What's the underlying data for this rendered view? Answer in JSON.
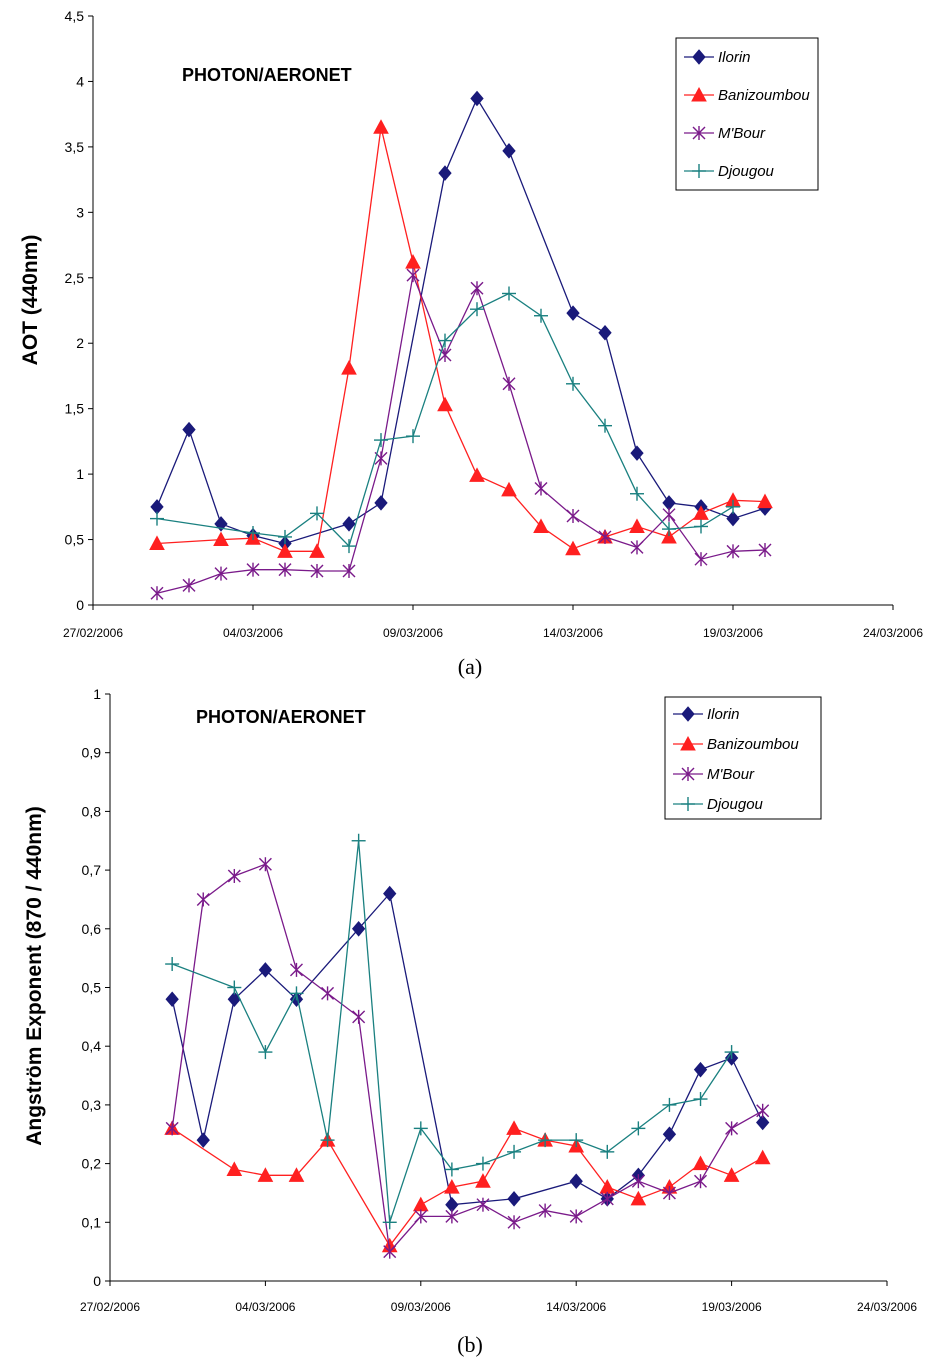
{
  "chart_data": [
    {
      "type": "line",
      "title": "PHOTON/AERONET",
      "caption": "(a)",
      "ylabel": "AOT  (440nm)",
      "xlabel": "",
      "ylim": [
        0,
        4.5
      ],
      "yticks": [
        "0",
        "0,5",
        "1",
        "1,5",
        "2",
        "2,5",
        "3",
        "3,5",
        "4",
        "4,5"
      ],
      "xlim": [
        "27/02/2006",
        "24/03/2006"
      ],
      "xticks": [
        "27/02/2006",
        "04/03/2006",
        "09/03/2006",
        "14/03/2006",
        "19/03/2006",
        "24/03/2006"
      ],
      "legend_position": "top-right",
      "grid": false,
      "series": [
        {
          "name": "Ilorin",
          "color": "#1a1a7a",
          "marker": "diamond",
          "x": [
            "2006-03-01",
            "2006-03-02",
            "2006-03-03",
            "2006-03-04",
            "2006-03-05",
            "2006-03-07",
            "2006-03-08",
            "2006-03-10",
            "2006-03-11",
            "2006-03-12",
            "2006-03-14",
            "2006-03-15",
            "2006-03-16",
            "2006-03-17",
            "2006-03-18",
            "2006-03-19",
            "2006-03-20"
          ],
          "y": [
            0.75,
            1.34,
            0.62,
            0.53,
            0.47,
            0.62,
            0.78,
            3.3,
            3.87,
            3.47,
            2.23,
            2.08,
            1.16,
            0.78,
            0.75,
            0.66,
            0.74
          ]
        },
        {
          "name": "Banizoumbou",
          "color": "#ff2020",
          "marker": "triangle",
          "x": [
            "2006-03-01",
            "2006-03-03",
            "2006-03-04",
            "2006-03-05",
            "2006-03-06",
            "2006-03-07",
            "2006-03-08",
            "2006-03-09",
            "2006-03-10",
            "2006-03-11",
            "2006-03-12",
            "2006-03-13",
            "2006-03-14",
            "2006-03-15",
            "2006-03-16",
            "2006-03-17",
            "2006-03-18",
            "2006-03-19",
            "2006-03-20"
          ],
          "y": [
            0.47,
            0.5,
            0.51,
            0.41,
            0.41,
            1.81,
            3.65,
            2.62,
            1.53,
            0.99,
            0.88,
            0.6,
            0.43,
            0.52,
            0.6,
            0.52,
            0.7,
            0.8,
            0.79
          ]
        },
        {
          "name": "M'Bour",
          "color": "#7a1a8a",
          "marker": "star",
          "x": [
            "2006-03-01",
            "2006-03-02",
            "2006-03-03",
            "2006-03-04",
            "2006-03-05",
            "2006-03-06",
            "2006-03-07",
            "2006-03-08",
            "2006-03-09",
            "2006-03-10",
            "2006-03-11",
            "2006-03-12",
            "2006-03-13",
            "2006-03-14",
            "2006-03-15",
            "2006-03-16",
            "2006-03-17",
            "2006-03-18",
            "2006-03-19",
            "2006-03-20"
          ],
          "y": [
            0.09,
            0.15,
            0.24,
            0.27,
            0.27,
            0.26,
            0.26,
            1.12,
            2.52,
            1.91,
            2.42,
            1.69,
            0.89,
            0.68,
            0.52,
            0.44,
            0.69,
            0.35,
            0.41,
            0.42
          ]
        },
        {
          "name": "Djougou",
          "color": "#1a8080",
          "marker": "plus",
          "x": [
            "2006-03-01",
            "2006-03-04",
            "2006-03-05",
            "2006-03-06",
            "2006-03-07",
            "2006-03-08",
            "2006-03-09",
            "2006-03-10",
            "2006-03-11",
            "2006-03-12",
            "2006-03-13",
            "2006-03-14",
            "2006-03-15",
            "2006-03-16",
            "2006-03-17",
            "2006-03-18",
            "2006-03-19"
          ],
          "y": [
            0.66,
            0.55,
            0.52,
            0.7,
            0.45,
            1.26,
            1.29,
            2.02,
            2.26,
            2.38,
            2.21,
            1.69,
            1.37,
            0.85,
            0.58,
            0.6,
            0.75
          ]
        }
      ]
    },
    {
      "type": "line",
      "title": "PHOTON/AERONET",
      "caption": "(b)",
      "ylabel": "Angström Exponent (870 / 440nm)",
      "xlabel": "",
      "ylim": [
        0,
        1
      ],
      "yticks": [
        "0",
        "0,1",
        "0,2",
        "0,3",
        "0,4",
        "0,5",
        "0,6",
        "0,7",
        "0,8",
        "0,9",
        "1"
      ],
      "xlim": [
        "27/02/2006",
        "24/03/2006"
      ],
      "xticks": [
        "27/02/2006",
        "04/03/2006",
        "09/03/2006",
        "14/03/2006",
        "19/03/2006",
        "24/03/2006"
      ],
      "legend_position": "top-right",
      "grid": false,
      "series": [
        {
          "name": "Ilorin",
          "color": "#1a1a7a",
          "marker": "diamond",
          "x": [
            "2006-03-01",
            "2006-03-02",
            "2006-03-03",
            "2006-03-04",
            "2006-03-05",
            "2006-03-07",
            "2006-03-08",
            "2006-03-10",
            "2006-03-12",
            "2006-03-14",
            "2006-03-15",
            "2006-03-16",
            "2006-03-17",
            "2006-03-18",
            "2006-03-19",
            "2006-03-20"
          ],
          "y": [
            0.48,
            0.24,
            0.48,
            0.53,
            0.48,
            0.6,
            0.66,
            0.13,
            0.14,
            0.17,
            0.14,
            0.18,
            0.25,
            0.36,
            0.38,
            0.27
          ]
        },
        {
          "name": "Banizoumbou",
          "color": "#ff2020",
          "marker": "triangle",
          "x": [
            "2006-03-01",
            "2006-03-03",
            "2006-03-04",
            "2006-03-05",
            "2006-03-06",
            "2006-03-08",
            "2006-03-09",
            "2006-03-10",
            "2006-03-11",
            "2006-03-12",
            "2006-03-13",
            "2006-03-14",
            "2006-03-15",
            "2006-03-16",
            "2006-03-17",
            "2006-03-18",
            "2006-03-19",
            "2006-03-20"
          ],
          "y": [
            0.26,
            0.19,
            0.18,
            0.18,
            0.24,
            0.06,
            0.13,
            0.16,
            0.17,
            0.26,
            0.24,
            0.23,
            0.16,
            0.14,
            0.16,
            0.2,
            0.18,
            0.21
          ]
        },
        {
          "name": "M'Bour",
          "color": "#7a1a8a",
          "marker": "star",
          "x": [
            "2006-03-01",
            "2006-03-02",
            "2006-03-03",
            "2006-03-04",
            "2006-03-05",
            "2006-03-06",
            "2006-03-07",
            "2006-03-08",
            "2006-03-09",
            "2006-03-10",
            "2006-03-11",
            "2006-03-12",
            "2006-03-13",
            "2006-03-14",
            "2006-03-15",
            "2006-03-16",
            "2006-03-17",
            "2006-03-18",
            "2006-03-19",
            "2006-03-20"
          ],
          "y": [
            0.26,
            0.65,
            0.69,
            0.71,
            0.53,
            0.49,
            0.45,
            0.05,
            0.11,
            0.11,
            0.13,
            0.1,
            0.12,
            0.11,
            0.14,
            0.17,
            0.15,
            0.17,
            0.26,
            0.29
          ]
        },
        {
          "name": "Djougou",
          "color": "#1a8080",
          "marker": "plus",
          "x": [
            "2006-03-01",
            "2006-03-03",
            "2006-03-04",
            "2006-03-05",
            "2006-03-06",
            "2006-03-07",
            "2006-03-08",
            "2006-03-09",
            "2006-03-10",
            "2006-03-11",
            "2006-03-12",
            "2006-03-13",
            "2006-03-14",
            "2006-03-15",
            "2006-03-16",
            "2006-03-17",
            "2006-03-18",
            "2006-03-19"
          ],
          "y": [
            0.54,
            0.5,
            0.39,
            0.49,
            0.24,
            0.75,
            0.1,
            0.26,
            0.19,
            0.2,
            0.22,
            0.24,
            0.24,
            0.22,
            0.26,
            0.3,
            0.31,
            0.39
          ]
        }
      ]
    }
  ]
}
